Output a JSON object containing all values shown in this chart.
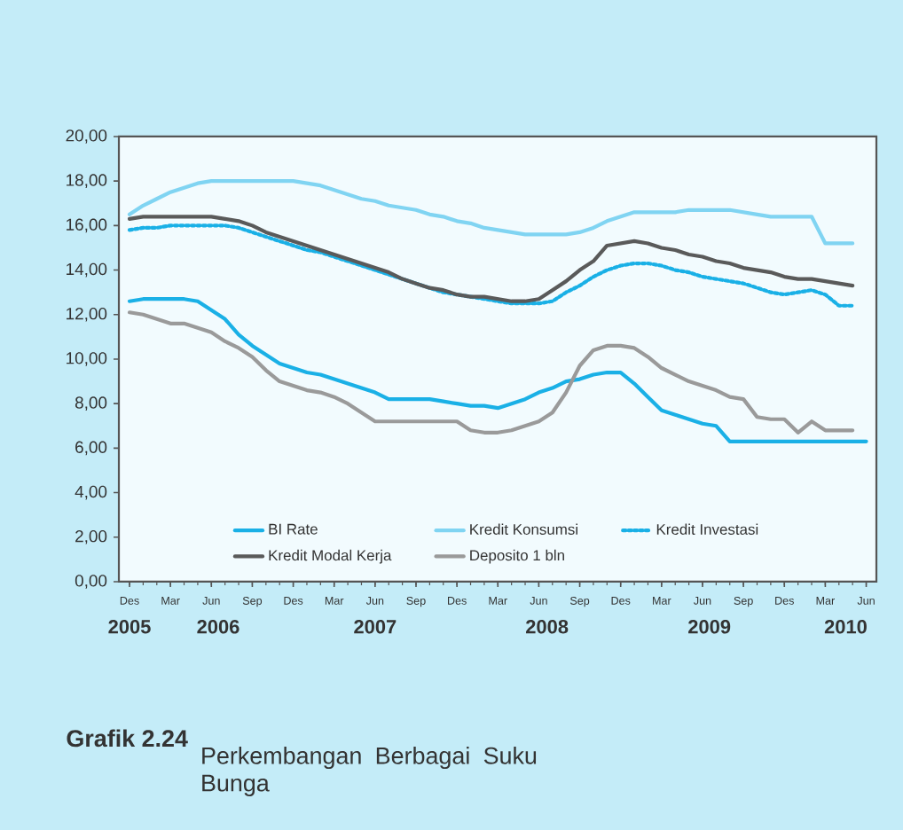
{
  "chart_data": {
    "type": "line",
    "title": "Grafik 2.24",
    "subtitle": "Perkembangan Berbagai Suku Bunga",
    "categories": [
      "Des",
      null,
      null,
      "Mar",
      null,
      null,
      "Jun",
      null,
      null,
      "Sep",
      null,
      null,
      "Des",
      null,
      null,
      "Mar",
      null,
      null,
      "Jun",
      null,
      null,
      "Sep",
      null,
      null,
      "Des",
      null,
      null,
      "Mar",
      null,
      null,
      "Jun",
      null,
      null,
      "Sep",
      null,
      null,
      "Des",
      null,
      null,
      "Mar",
      null,
      null,
      "Jun",
      null,
      null,
      "Sep",
      null,
      null,
      "Des",
      null,
      null,
      "Mar",
      null,
      null,
      "Jun"
    ],
    "annotations": [
      "2005",
      "2006",
      "2007",
      "2008",
      "2009",
      "2010"
    ],
    "ylim": [
      0,
      20
    ],
    "yticks": [
      {
        "value": 0,
        "label": "0,00"
      },
      {
        "value": 2,
        "label": "2,00"
      },
      {
        "value": 4,
        "label": "4,00"
      },
      {
        "value": 6,
        "label": "6,00"
      },
      {
        "value": 8,
        "label": "8,00"
      },
      {
        "value": 10,
        "label": "10,00"
      },
      {
        "value": 12,
        "label": "12,00"
      },
      {
        "value": 14,
        "label": "14,00"
      },
      {
        "value": 16,
        "label": "16,00"
      },
      {
        "value": 18,
        "label": "18,00"
      },
      {
        "value": 20,
        "label": "20,00"
      }
    ],
    "legend": "bottom",
    "series": [
      {
        "name": "BI Rate",
        "color": "#1ab0e6",
        "line_style": "solid",
        "values": [
          12.6,
          12.7,
          12.7,
          12.7,
          12.7,
          12.6,
          12.2,
          11.8,
          11.1,
          10.6,
          10.2,
          9.8,
          9.6,
          9.4,
          9.3,
          9.1,
          8.9,
          8.7,
          8.5,
          8.2,
          8.2,
          8.2,
          8.2,
          8.1,
          8.0,
          7.9,
          7.9,
          7.8,
          8.0,
          8.2,
          8.5,
          8.7,
          9.0,
          9.1,
          9.3,
          9.4,
          9.4,
          8.9,
          8.3,
          7.7,
          7.5,
          7.3,
          7.1,
          7.0,
          6.3,
          6.3,
          6.3,
          6.3,
          6.3,
          6.3,
          6.3,
          6.3,
          6.3,
          6.3,
          6.3
        ]
      },
      {
        "name": "Kredit Konsumsi",
        "color": "#80d4f2",
        "line_style": "solid",
        "values": [
          16.5,
          16.9,
          17.2,
          17.5,
          17.7,
          17.9,
          18.0,
          18.0,
          18.0,
          18.0,
          18.0,
          18.0,
          18.0,
          17.9,
          17.8,
          17.6,
          17.4,
          17.2,
          17.1,
          16.9,
          16.8,
          16.7,
          16.5,
          16.4,
          16.2,
          16.1,
          15.9,
          15.8,
          15.7,
          15.6,
          15.6,
          15.6,
          15.6,
          15.7,
          15.9,
          16.2,
          16.4,
          16.6,
          16.6,
          16.6,
          16.6,
          16.7,
          16.7,
          16.7,
          16.7,
          16.6,
          16.5,
          16.4,
          16.4,
          16.4,
          16.4,
          15.2,
          15.2,
          15.2,
          null
        ]
      },
      {
        "name": "Kredit Investasi",
        "color": "#1ab0e6",
        "line_style": "dotted",
        "values": [
          15.8,
          15.9,
          15.9,
          16.0,
          16.0,
          16.0,
          16.0,
          16.0,
          15.9,
          15.7,
          15.5,
          15.3,
          15.1,
          14.9,
          14.8,
          14.6,
          14.4,
          14.2,
          14.0,
          13.8,
          13.6,
          13.4,
          13.2,
          13.0,
          12.9,
          12.8,
          12.7,
          12.6,
          12.5,
          12.5,
          12.5,
          12.6,
          13.0,
          13.3,
          13.7,
          14.0,
          14.2,
          14.3,
          14.3,
          14.2,
          14.0,
          13.9,
          13.7,
          13.6,
          13.5,
          13.4,
          13.2,
          13.0,
          12.9,
          13.0,
          13.1,
          12.9,
          12.4,
          12.4,
          null
        ]
      },
      {
        "name": "Kredit Modal Kerja",
        "color": "#5a5a5a",
        "line_style": "solid",
        "values": [
          16.3,
          16.4,
          16.4,
          16.4,
          16.4,
          16.4,
          16.4,
          16.3,
          16.2,
          16.0,
          15.7,
          15.5,
          15.3,
          15.1,
          14.9,
          14.7,
          14.5,
          14.3,
          14.1,
          13.9,
          13.6,
          13.4,
          13.2,
          13.1,
          12.9,
          12.8,
          12.8,
          12.7,
          12.6,
          12.6,
          12.7,
          13.1,
          13.5,
          14.0,
          14.4,
          15.1,
          15.2,
          15.3,
          15.2,
          15.0,
          14.9,
          14.7,
          14.6,
          14.4,
          14.3,
          14.1,
          14.0,
          13.9,
          13.7,
          13.6,
          13.6,
          13.5,
          13.4,
          13.3,
          null
        ]
      },
      {
        "name": "Deposito 1 bln",
        "color": "#9a9a9a",
        "line_style": "solid",
        "values": [
          12.1,
          12.0,
          11.8,
          11.6,
          11.6,
          11.4,
          11.2,
          10.8,
          10.5,
          10.1,
          9.5,
          9.0,
          8.8,
          8.6,
          8.5,
          8.3,
          8.0,
          7.6,
          7.2,
          7.2,
          7.2,
          7.2,
          7.2,
          7.2,
          7.2,
          6.8,
          6.7,
          6.7,
          6.8,
          7.0,
          7.2,
          7.6,
          8.5,
          9.7,
          10.4,
          10.6,
          10.6,
          10.5,
          10.1,
          9.6,
          9.3,
          9.0,
          8.8,
          8.6,
          8.3,
          8.2,
          7.4,
          7.3,
          7.3,
          6.7,
          7.2,
          6.8,
          6.8,
          6.8,
          null
        ]
      }
    ]
  }
}
